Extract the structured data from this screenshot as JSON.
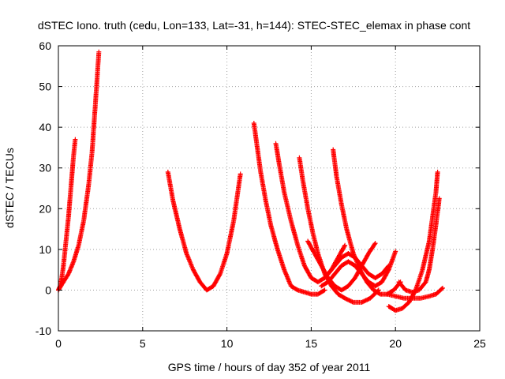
{
  "chart_data": {
    "type": "scatter",
    "title": "dSTEC Iono. truth (cedu, Lon=133, Lat=-31, h=144): STEC-STEC_elemax in phase cont",
    "xlabel": "GPS time / hours of day 352 of year 2011",
    "ylabel": "dSTEC  / TECUs",
    "xlim": [
      0,
      25
    ],
    "ylim": [
      -10,
      60
    ],
    "xticks": [
      0,
      5,
      10,
      15,
      20,
      25
    ],
    "yticks": [
      -10,
      0,
      10,
      20,
      30,
      40,
      50,
      60
    ],
    "grid": true,
    "marker": "+",
    "color": "#ff0000",
    "series": [
      {
        "x": [
          0.0,
          0.1,
          0.2,
          0.3,
          0.4,
          0.5,
          0.6,
          0.7,
          0.8,
          0.9,
          1.0
        ],
        "y": [
          0.0,
          1.0,
          3.0,
          6.0,
          10.0,
          14.0,
          18.0,
          23.0,
          28.0,
          33.0,
          37.0
        ]
      },
      {
        "x": [
          0.0,
          0.3,
          0.6,
          0.9,
          1.2,
          1.5,
          1.8,
          2.0,
          2.1,
          2.2,
          2.3,
          2.4
        ],
        "y": [
          0.0,
          2.0,
          4.0,
          7.0,
          11.0,
          17.0,
          26.0,
          34.0,
          40.0,
          46.0,
          52.0,
          58.5
        ]
      },
      {
        "x": [
          6.5,
          6.8,
          7.2,
          7.6,
          8.0,
          8.4,
          8.8,
          9.2,
          9.6,
          10.0,
          10.4,
          10.8
        ],
        "y": [
          29.0,
          22.0,
          15.0,
          9.0,
          5.0,
          2.0,
          0.0,
          1.0,
          4.0,
          9.0,
          17.0,
          28.5
        ]
      },
      {
        "x": [
          11.6,
          11.8,
          12.0,
          12.3,
          12.6,
          13.0,
          13.4,
          13.8,
          14.2,
          14.6,
          15.0,
          15.4,
          15.8
        ],
        "y": [
          41.0,
          35.0,
          29.0,
          22.0,
          16.0,
          10.0,
          5.0,
          1.0,
          0.0,
          -0.5,
          -1.0,
          -1.0,
          0.0
        ]
      },
      {
        "x": [
          12.9,
          13.1,
          13.4,
          13.8,
          14.2,
          14.6,
          15.0,
          15.4,
          15.8,
          16.2,
          16.6,
          17.0
        ],
        "y": [
          36.0,
          31.0,
          24.0,
          17.0,
          11.0,
          6.0,
          3.0,
          2.0,
          3.0,
          5.0,
          8.0,
          11.0
        ]
      },
      {
        "x": [
          14.3,
          14.5,
          14.8,
          15.1,
          15.4,
          15.8,
          16.2,
          16.6,
          17.0,
          17.5,
          18.0,
          18.5,
          19.0
        ],
        "y": [
          32.5,
          27.0,
          20.0,
          14.0,
          9.0,
          4.0,
          1.0,
          -1.0,
          -2.0,
          -3.0,
          -3.0,
          -2.0,
          0.0
        ]
      },
      {
        "x": [
          16.3,
          16.5,
          16.8,
          17.1,
          17.5,
          17.9,
          18.3,
          18.7,
          19.1,
          19.5,
          19.9,
          20.3
        ],
        "y": [
          34.5,
          28.0,
          21.0,
          15.0,
          9.0,
          5.0,
          2.0,
          0.0,
          -1.0,
          -1.0,
          0.0,
          2.0
        ]
      },
      {
        "x": [
          14.8,
          15.2,
          15.6,
          16.0,
          16.4,
          16.8,
          17.2,
          17.6,
          18.0,
          18.4,
          18.8
        ],
        "y": [
          12.0,
          9.0,
          6.0,
          3.0,
          1.0,
          0.0,
          1.0,
          3.0,
          6.0,
          9.0,
          11.5
        ]
      },
      {
        "x": [
          15.6,
          16.0,
          16.4,
          16.8,
          17.2,
          17.6,
          18.0,
          18.4,
          18.8,
          19.2,
          19.6,
          20.0
        ],
        "y": [
          1.0,
          2.0,
          4.0,
          6.0,
          7.0,
          6.0,
          4.0,
          2.0,
          1.0,
          2.0,
          5.0,
          9.5
        ]
      },
      {
        "x": [
          16.0,
          16.4,
          16.8,
          17.2,
          17.6,
          18.0,
          18.4,
          18.8,
          19.2,
          19.6
        ],
        "y": [
          4.0,
          6.0,
          8.0,
          9.0,
          8.0,
          6.0,
          4.0,
          3.0,
          4.0,
          6.0
        ]
      },
      {
        "x": [
          19.6,
          20.0,
          20.4,
          20.8,
          21.2,
          21.6,
          22.0,
          22.2,
          22.4,
          22.5
        ],
        "y": [
          -4.0,
          -5.0,
          -4.5,
          -3.0,
          0.0,
          5.0,
          12.0,
          18.0,
          24.0,
          29.0
        ]
      },
      {
        "x": [
          20.2,
          20.6,
          21.0,
          21.4,
          21.8,
          22.0,
          22.2,
          22.4,
          22.6
        ],
        "y": [
          2.0,
          0.0,
          -0.5,
          0.0,
          2.0,
          5.0,
          10.0,
          16.0,
          22.5
        ]
      },
      {
        "x": [
          19.5,
          20.0,
          20.5,
          21.0,
          21.5,
          22.0,
          22.4,
          22.8
        ],
        "y": [
          -1.0,
          -1.5,
          -2.0,
          -2.0,
          -2.0,
          -1.5,
          -1.0,
          0.5
        ]
      }
    ]
  }
}
